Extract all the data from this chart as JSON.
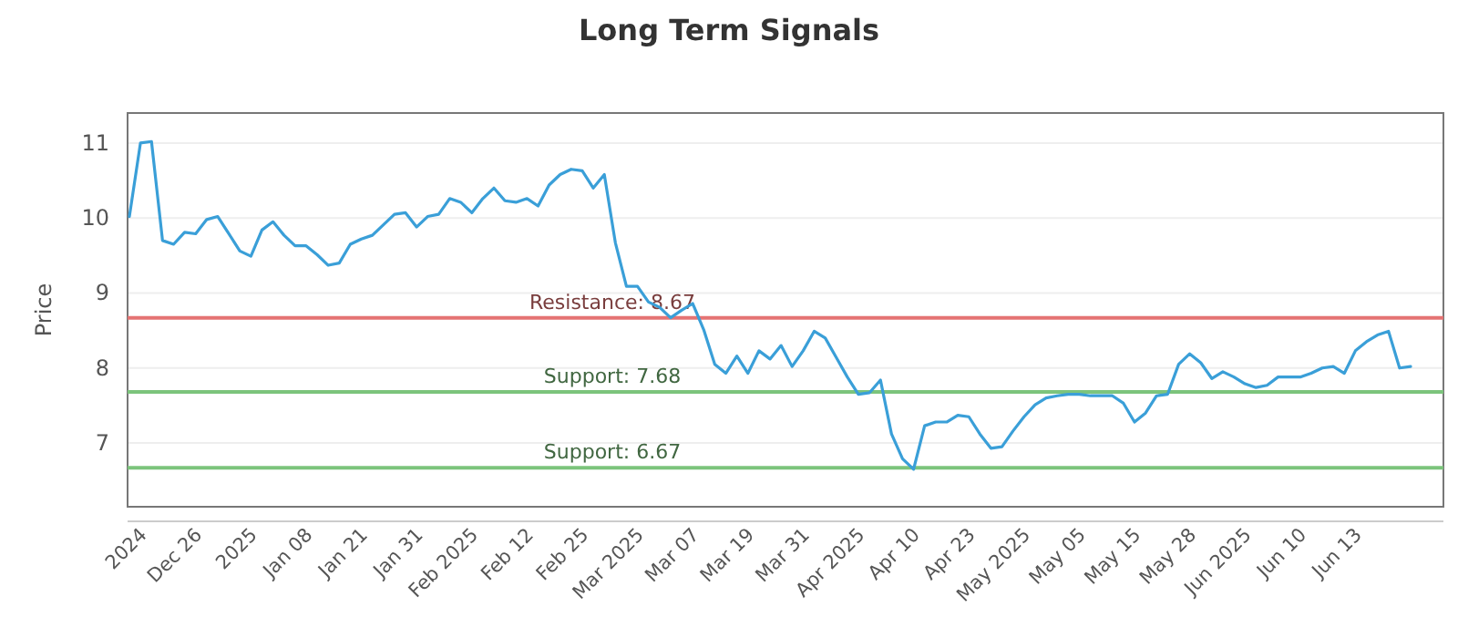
{
  "chart_data": {
    "type": "line",
    "title": "Long Term Signals",
    "ylabel": "Price",
    "categories": [
      null,
      "2024",
      null,
      null,
      null,
      null,
      "Dec 26",
      null,
      null,
      null,
      null,
      "2025",
      null,
      null,
      null,
      null,
      "Jan 08",
      null,
      null,
      null,
      null,
      "Jan 21",
      null,
      null,
      null,
      null,
      "Jan 31",
      null,
      null,
      null,
      null,
      "Feb 2025",
      null,
      null,
      null,
      null,
      "Feb 12",
      null,
      null,
      null,
      null,
      "Feb 25",
      null,
      null,
      null,
      null,
      "Mar 2025",
      null,
      null,
      null,
      null,
      "Mar 07",
      null,
      null,
      null,
      null,
      "Mar 19",
      null,
      null,
      null,
      null,
      "Mar 31",
      null,
      null,
      null,
      null,
      "Apr 2025",
      null,
      null,
      null,
      null,
      "Apr 10",
      null,
      null,
      null,
      null,
      "Apr 23",
      null,
      null,
      null,
      null,
      "May 2025",
      null,
      null,
      null,
      null,
      "May 05",
      null,
      null,
      null,
      null,
      "May 15",
      null,
      null,
      null,
      null,
      "May 28",
      null,
      null,
      null,
      null,
      "Jun 2025",
      null,
      null,
      null,
      null,
      "Jun 10",
      null,
      null,
      null,
      null,
      "Jun 13",
      null,
      null,
      null,
      null,
      null
    ],
    "series": [
      {
        "color": "#3a9fd8",
        "values": [
          10.02,
          11.0,
          11.02,
          9.7,
          9.65,
          9.81,
          9.79,
          9.98,
          10.02,
          9.79,
          9.56,
          9.49,
          9.84,
          9.95,
          9.77,
          9.63,
          9.63,
          9.51,
          9.37,
          9.4,
          9.65,
          9.72,
          9.77,
          9.91,
          10.05,
          10.07,
          9.88,
          10.02,
          10.05,
          10.26,
          10.21,
          10.07,
          10.26,
          10.4,
          10.23,
          10.21,
          10.26,
          10.16,
          10.44,
          10.58,
          10.65,
          10.63,
          10.4,
          10.58,
          9.67,
          9.09,
          9.09,
          8.88,
          8.81,
          8.67,
          8.77,
          8.86,
          8.51,
          8.05,
          7.93,
          8.16,
          7.93,
          8.23,
          8.12,
          8.3,
          8.02,
          8.23,
          8.49,
          8.4,
          8.14,
          7.88,
          7.65,
          7.67,
          7.84,
          7.12,
          6.79,
          6.65,
          7.23,
          7.28,
          7.28,
          7.37,
          7.35,
          7.12,
          6.93,
          6.95,
          7.16,
          7.35,
          7.51,
          7.6,
          7.63,
          7.65,
          7.65,
          7.63,
          7.63,
          7.63,
          7.53,
          7.28,
          7.4,
          7.63,
          7.65,
          8.05,
          8.19,
          8.07,
          7.86,
          7.95,
          7.88,
          7.79,
          7.74,
          7.77,
          7.88,
          7.88,
          7.88,
          7.93,
          8.0,
          8.02,
          7.93,
          8.23,
          8.35,
          8.44,
          8.49,
          8.0,
          8.02
        ]
      }
    ],
    "ylim": [
      6.15,
      11.4
    ],
    "yticks": [
      7,
      8,
      9,
      10,
      11
    ],
    "grid": "y",
    "ref_lines": [
      {
        "axis": "y",
        "value": 8.67,
        "label": "Resistance: 8.67",
        "color": "#e57373"
      },
      {
        "axis": "y",
        "value": 7.68,
        "label": "Support: 7.68",
        "color": "#7cc47c"
      },
      {
        "axis": "y",
        "value": 6.67,
        "label": "Support: 6.67",
        "color": "#7cc47c"
      }
    ]
  }
}
